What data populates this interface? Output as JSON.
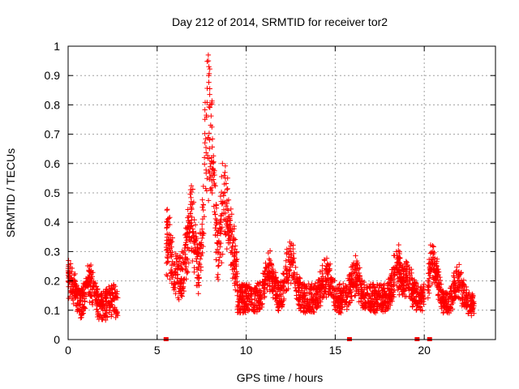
{
  "chart_data": {
    "type": "scatter",
    "title": "Day 212 of 2014, SRMTID for receiver tor2",
    "xlabel": "GPS time / hours",
    "ylabel": "SRMTID / TECUs",
    "xlim": [
      0,
      24
    ],
    "ylim": [
      0,
      1
    ],
    "x_ticks": [
      0,
      5,
      10,
      15,
      20
    ],
    "x_tick_labels": [
      "0",
      "5",
      "10",
      "15",
      "20"
    ],
    "y_ticks": [
      0,
      0.1,
      0.2,
      0.3,
      0.4,
      0.5,
      0.6,
      0.7,
      0.8,
      0.9,
      1
    ],
    "y_tick_labels": [
      "0",
      "0.1",
      "0.2",
      "0.3",
      "0.4",
      "0.5",
      "0.6",
      "0.7",
      "0.8",
      "0.9",
      "1"
    ],
    "grid": true,
    "marker": "plus",
    "color": "#ff0000",
    "segments": [
      {
        "x_start": 0.0,
        "x_end": 2.8,
        "base": 0.11,
        "spread": 0.05,
        "peaks": [
          [
            0.05,
            0.25
          ],
          [
            0.2,
            0.2
          ],
          [
            1.25,
            0.23
          ],
          [
            2.5,
            0.15
          ]
        ]
      },
      {
        "x_start": 5.5,
        "x_end": 9.5,
        "base": 0.2,
        "spread": 0.08,
        "peaks": [
          [
            5.55,
            0.4
          ],
          [
            6.9,
            0.47
          ],
          [
            7.9,
            0.97
          ],
          [
            8.05,
            0.6
          ],
          [
            8.8,
            0.57
          ],
          [
            9.1,
            0.39
          ]
        ]
      },
      {
        "x_start": 9.5,
        "x_end": 20.0,
        "base": 0.14,
        "spread": 0.05,
        "peaks": [
          [
            11.3,
            0.27
          ],
          [
            12.5,
            0.32
          ],
          [
            14.5,
            0.25
          ],
          [
            16.1,
            0.25
          ],
          [
            18.5,
            0.28
          ],
          [
            19.0,
            0.25
          ]
        ]
      },
      {
        "x_start": 20.2,
        "x_end": 22.8,
        "base": 0.12,
        "spread": 0.04,
        "peaks": [
          [
            20.5,
            0.32
          ],
          [
            21.9,
            0.23
          ]
        ]
      }
    ],
    "zero_points": [
      5.5,
      15.8,
      19.6,
      20.3
    ]
  }
}
